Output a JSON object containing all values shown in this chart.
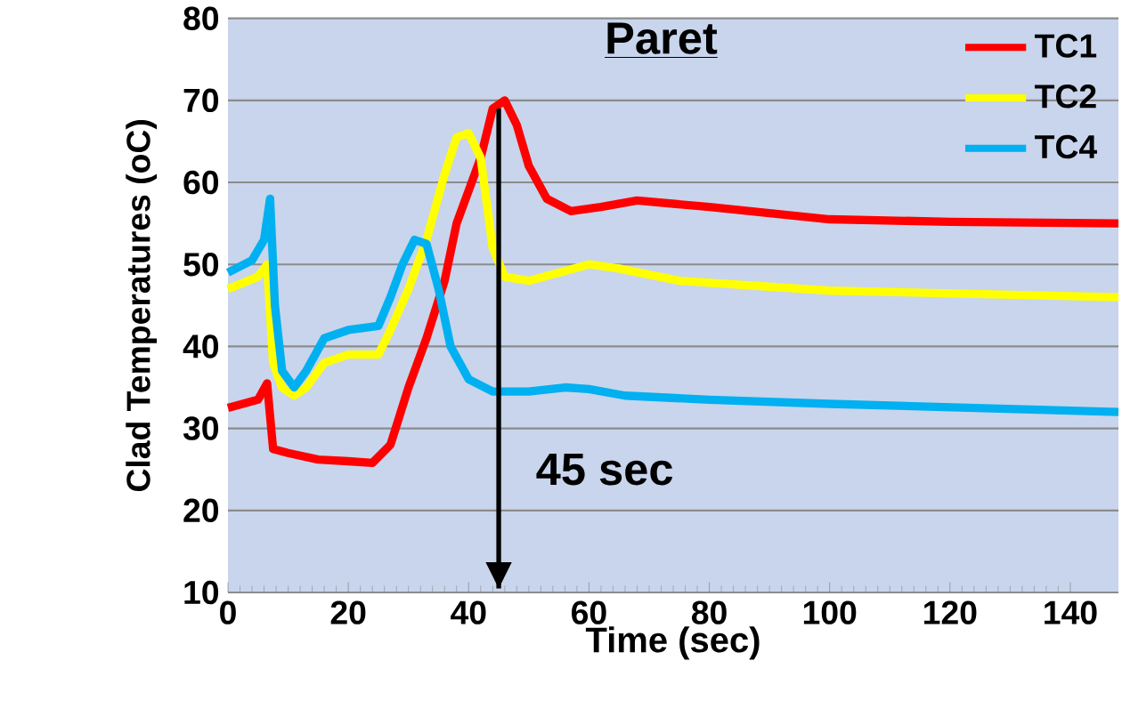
{
  "chart_data": {
    "type": "line",
    "title": "Paret",
    "xlabel": "Time (sec)",
    "ylabel": "Clad Temperatures (oC)",
    "xlim": [
      0,
      148
    ],
    "ylim": [
      10,
      80
    ],
    "xticks": [
      0,
      20,
      40,
      60,
      80,
      100,
      120,
      140
    ],
    "yticks": [
      10,
      20,
      30,
      40,
      50,
      60,
      70,
      80
    ],
    "grid": "y",
    "legend": "top right",
    "marker": "none",
    "line_style": "solid",
    "ref_lines": [
      {
        "axis": "x",
        "value": 45,
        "label": "45 sec",
        "color": "#000000"
      }
    ],
    "series": [
      {
        "name": "TC1",
        "color": "#ff0000",
        "x": [
          0,
          5,
          6.5,
          7.5,
          10,
          15,
          20,
          24,
          27,
          30,
          33,
          36,
          38,
          40,
          42,
          44,
          46,
          48,
          50,
          53,
          57,
          62,
          68,
          80,
          100,
          120,
          148
        ],
        "values": [
          32.5,
          33.5,
          35.5,
          27.5,
          27,
          26.2,
          26,
          25.8,
          28,
          35,
          41,
          48,
          55,
          59,
          63,
          69,
          70,
          67,
          62,
          58,
          56.5,
          57,
          57.8,
          57,
          55.5,
          55.2,
          55
        ]
      },
      {
        "name": "TC2",
        "color": "#ffff00",
        "x": [
          0,
          5,
          6.5,
          7.5,
          9,
          11,
          13,
          16,
          20,
          25,
          27,
          30,
          33,
          36,
          38,
          40,
          42,
          44,
          46,
          50,
          55,
          60,
          65,
          75,
          100,
          148
        ],
        "values": [
          47,
          48.5,
          50,
          38,
          35,
          34,
          35,
          38,
          39,
          39,
          42,
          47,
          53,
          61,
          65.5,
          66,
          63,
          52,
          48.5,
          48,
          49,
          50,
          49.5,
          48,
          46.8,
          46
        ]
      },
      {
        "name": "TC4",
        "color": "#00b0f0",
        "x": [
          0,
          4,
          6,
          7,
          7.8,
          9,
          11,
          13,
          16,
          20,
          25,
          27,
          29,
          31,
          33,
          35,
          37,
          40,
          44,
          50,
          56,
          60,
          66,
          80,
          100,
          148
        ],
        "values": [
          49,
          50.5,
          53,
          58,
          45,
          37,
          35,
          37,
          41,
          42,
          42.5,
          46,
          50,
          53,
          52.5,
          47,
          40,
          36,
          34.5,
          34.5,
          35,
          34.8,
          34,
          33.5,
          33,
          32
        ]
      }
    ]
  }
}
